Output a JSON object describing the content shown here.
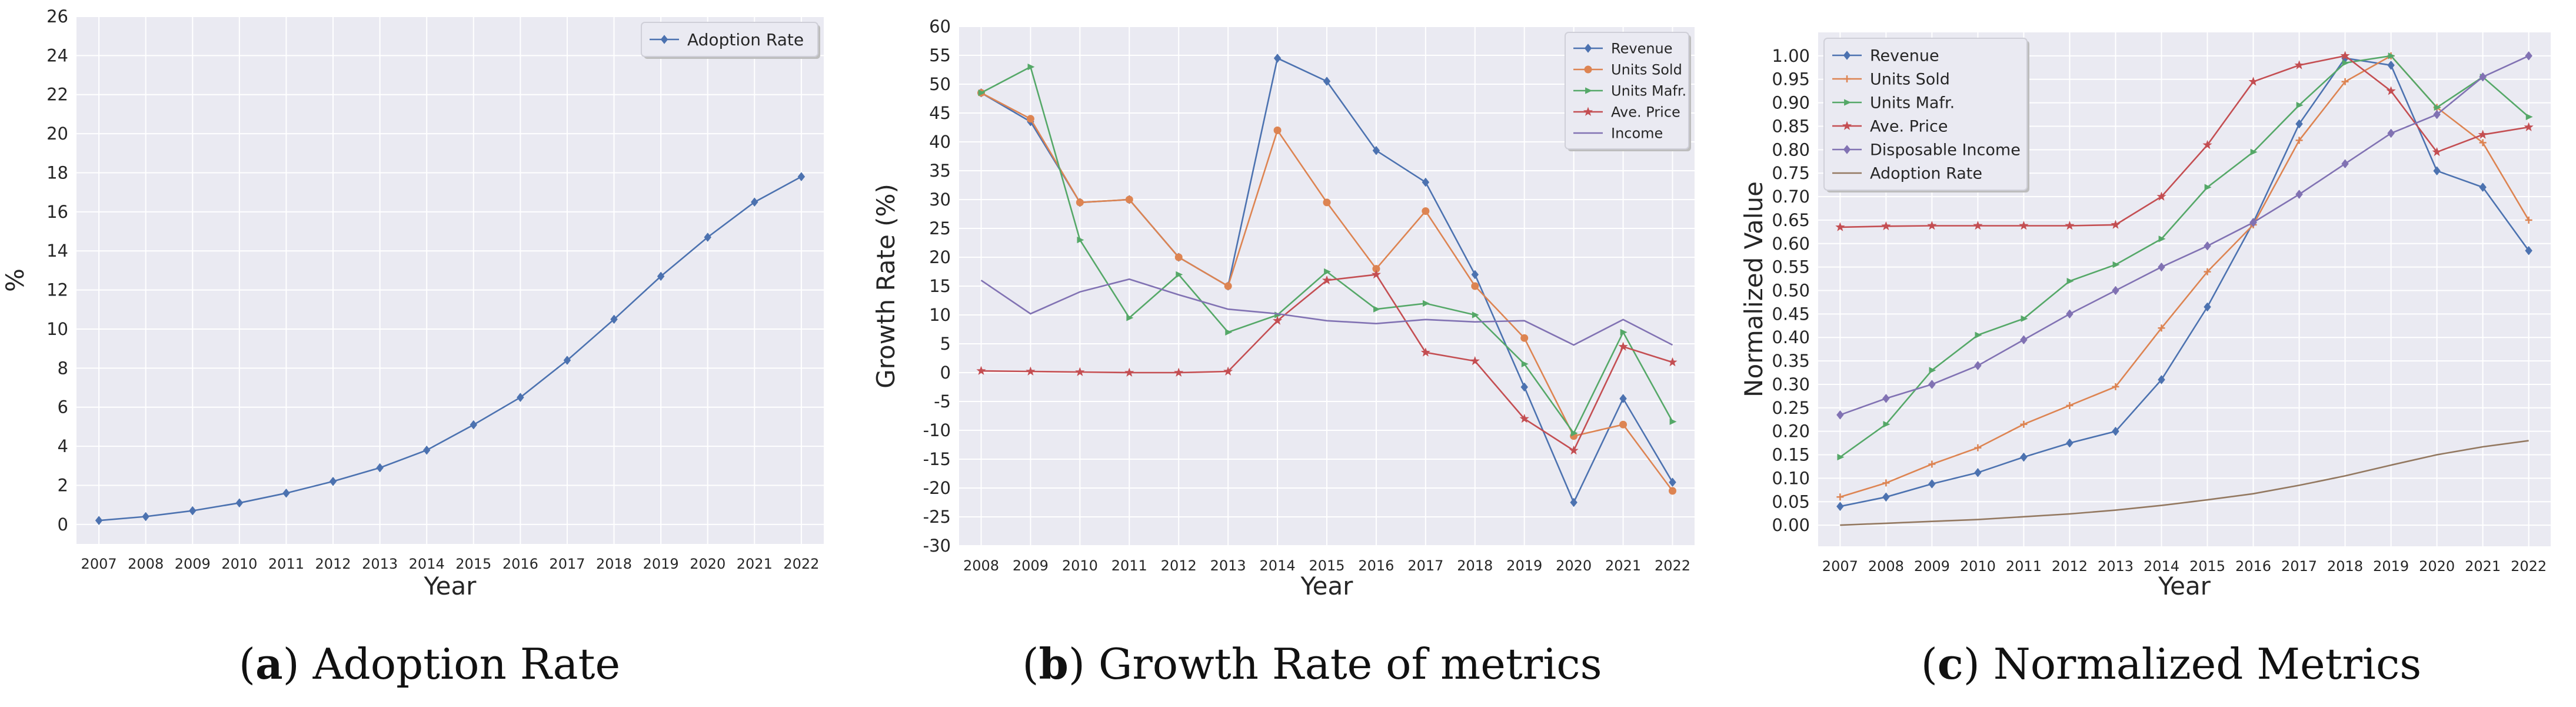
{
  "chart_data": [
    {
      "type": "line",
      "title": "",
      "xlabel": "Year",
      "ylabel": "%",
      "x": [
        2007,
        2008,
        2009,
        2010,
        2011,
        2012,
        2013,
        2014,
        2015,
        2016,
        2017,
        2018,
        2019,
        2020,
        2021,
        2022
      ],
      "ylim": [
        -1,
        26
      ],
      "yticks": [
        0,
        2,
        4,
        6,
        8,
        10,
        12,
        14,
        16,
        18,
        20,
        22,
        24,
        26
      ],
      "grid": true,
      "legend_position": "top-right",
      "series": [
        {
          "name": "Adoption Rate",
          "color": "#4C72B0",
          "marker": "diamond",
          "values": [
            0.2,
            0.4,
            0.7,
            1.1,
            1.6,
            2.2,
            2.9,
            3.8,
            5.1,
            6.5,
            8.4,
            10.5,
            12.7,
            14.7,
            16.5,
            17.8
          ]
        }
      ],
      "caption": {
        "letter": "a",
        "text": "Adoption Rate"
      }
    },
    {
      "type": "line",
      "title": "",
      "xlabel": "Year",
      "ylabel": "Growth Rate (%)",
      "x": [
        2008,
        2009,
        2010,
        2011,
        2012,
        2013,
        2014,
        2015,
        2016,
        2017,
        2018,
        2019,
        2020,
        2021,
        2022
      ],
      "ylim": [
        -30,
        60
      ],
      "yticks": [
        -30,
        -25,
        -20,
        -15,
        -10,
        -5,
        0,
        5,
        10,
        15,
        20,
        25,
        30,
        35,
        40,
        45,
        50,
        55,
        60
      ],
      "grid": true,
      "legend_position": "top-right",
      "series": [
        {
          "name": "Revenue",
          "color": "#4C72B0",
          "marker": "diamond",
          "values": [
            48.5,
            43.5,
            29.5,
            30.0,
            20.0,
            15.0,
            54.5,
            50.5,
            38.5,
            33.0,
            17.0,
            -2.5,
            -22.5,
            -4.5,
            -19.0
          ]
        },
        {
          "name": "Units Sold",
          "color": "#DD8452",
          "marker": "circle",
          "values": [
            48.5,
            44.0,
            29.5,
            30.0,
            20.0,
            15.0,
            42.0,
            29.5,
            18.0,
            28.0,
            15.0,
            6.0,
            -11.0,
            -9.0,
            -20.5
          ]
        },
        {
          "name": "Units Mafr.",
          "color": "#55A868",
          "marker": "triangle",
          "values": [
            48.5,
            53.0,
            23.0,
            9.5,
            17.0,
            7.0,
            10.0,
            17.5,
            11.0,
            12.0,
            10.0,
            1.5,
            -10.5,
            7.0,
            -8.5
          ]
        },
        {
          "name": "Ave. Price",
          "color": "#C44E52",
          "marker": "star",
          "values": [
            0.3,
            0.2,
            0.1,
            0.0,
            0.0,
            0.2,
            9.0,
            16.0,
            17.0,
            3.5,
            2.0,
            -8.0,
            -13.5,
            4.5,
            1.8
          ]
        },
        {
          "name": "Income",
          "color": "#8172B3",
          "marker": "none",
          "values": [
            16.0,
            10.2,
            14.0,
            16.2,
            13.5,
            11.0,
            10.2,
            9.0,
            8.5,
            9.2,
            8.8,
            9.0,
            4.8,
            9.2,
            4.8
          ]
        }
      ],
      "caption": {
        "letter": "b",
        "text": "Growth Rate of metrics"
      }
    },
    {
      "type": "line",
      "title": "",
      "xlabel": "Year",
      "ylabel": "Normalized Value",
      "x": [
        2007,
        2008,
        2009,
        2010,
        2011,
        2012,
        2013,
        2014,
        2015,
        2016,
        2017,
        2018,
        2019,
        2020,
        2021,
        2022
      ],
      "ylim": [
        -0.045,
        1.05
      ],
      "yticks": [
        0.0,
        0.05,
        0.1,
        0.15,
        0.2,
        0.25,
        0.3,
        0.35,
        0.4,
        0.45,
        0.5,
        0.55,
        0.6,
        0.65,
        0.7,
        0.75,
        0.8,
        0.85,
        0.9,
        0.95,
        1.0
      ],
      "grid": true,
      "legend_position": "top-left",
      "series": [
        {
          "name": "Revenue",
          "color": "#4C72B0",
          "marker": "diamond",
          "values": [
            0.04,
            0.06,
            0.088,
            0.112,
            0.145,
            0.175,
            0.2,
            0.31,
            0.465,
            0.645,
            0.855,
            0.995,
            0.98,
            0.755,
            0.72,
            0.585
          ]
        },
        {
          "name": "Units Sold",
          "color": "#DD8452",
          "marker": "plus",
          "values": [
            0.06,
            0.09,
            0.13,
            0.165,
            0.215,
            0.255,
            0.295,
            0.42,
            0.54,
            0.64,
            0.82,
            0.945,
            1.0,
            0.89,
            0.815,
            0.65
          ]
        },
        {
          "name": "Units Mafr.",
          "color": "#55A868",
          "marker": "triangle",
          "values": [
            0.145,
            0.215,
            0.33,
            0.405,
            0.44,
            0.52,
            0.555,
            0.61,
            0.72,
            0.795,
            0.895,
            0.985,
            1.0,
            0.89,
            0.955,
            0.87
          ]
        },
        {
          "name": "Ave. Price",
          "color": "#C44E52",
          "marker": "star",
          "values": [
            0.635,
            0.637,
            0.638,
            0.638,
            0.638,
            0.638,
            0.64,
            0.7,
            0.81,
            0.945,
            0.98,
            1.0,
            0.925,
            0.795,
            0.832,
            0.848
          ]
        },
        {
          "name": "Disposable Income",
          "color": "#8172B3",
          "marker": "diamond",
          "values": [
            0.235,
            0.27,
            0.3,
            0.34,
            0.395,
            0.45,
            0.5,
            0.55,
            0.595,
            0.645,
            0.705,
            0.77,
            0.835,
            0.875,
            0.955,
            1.0
          ]
        },
        {
          "name": "Adoption Rate",
          "color": "#937860",
          "marker": "none",
          "values": [
            0.0,
            0.004,
            0.008,
            0.012,
            0.018,
            0.024,
            0.032,
            0.042,
            0.054,
            0.067,
            0.085,
            0.105,
            0.128,
            0.15,
            0.167,
            0.18
          ]
        }
      ],
      "caption": {
        "letter": "c",
        "text": "Normalized Metrics"
      }
    }
  ]
}
